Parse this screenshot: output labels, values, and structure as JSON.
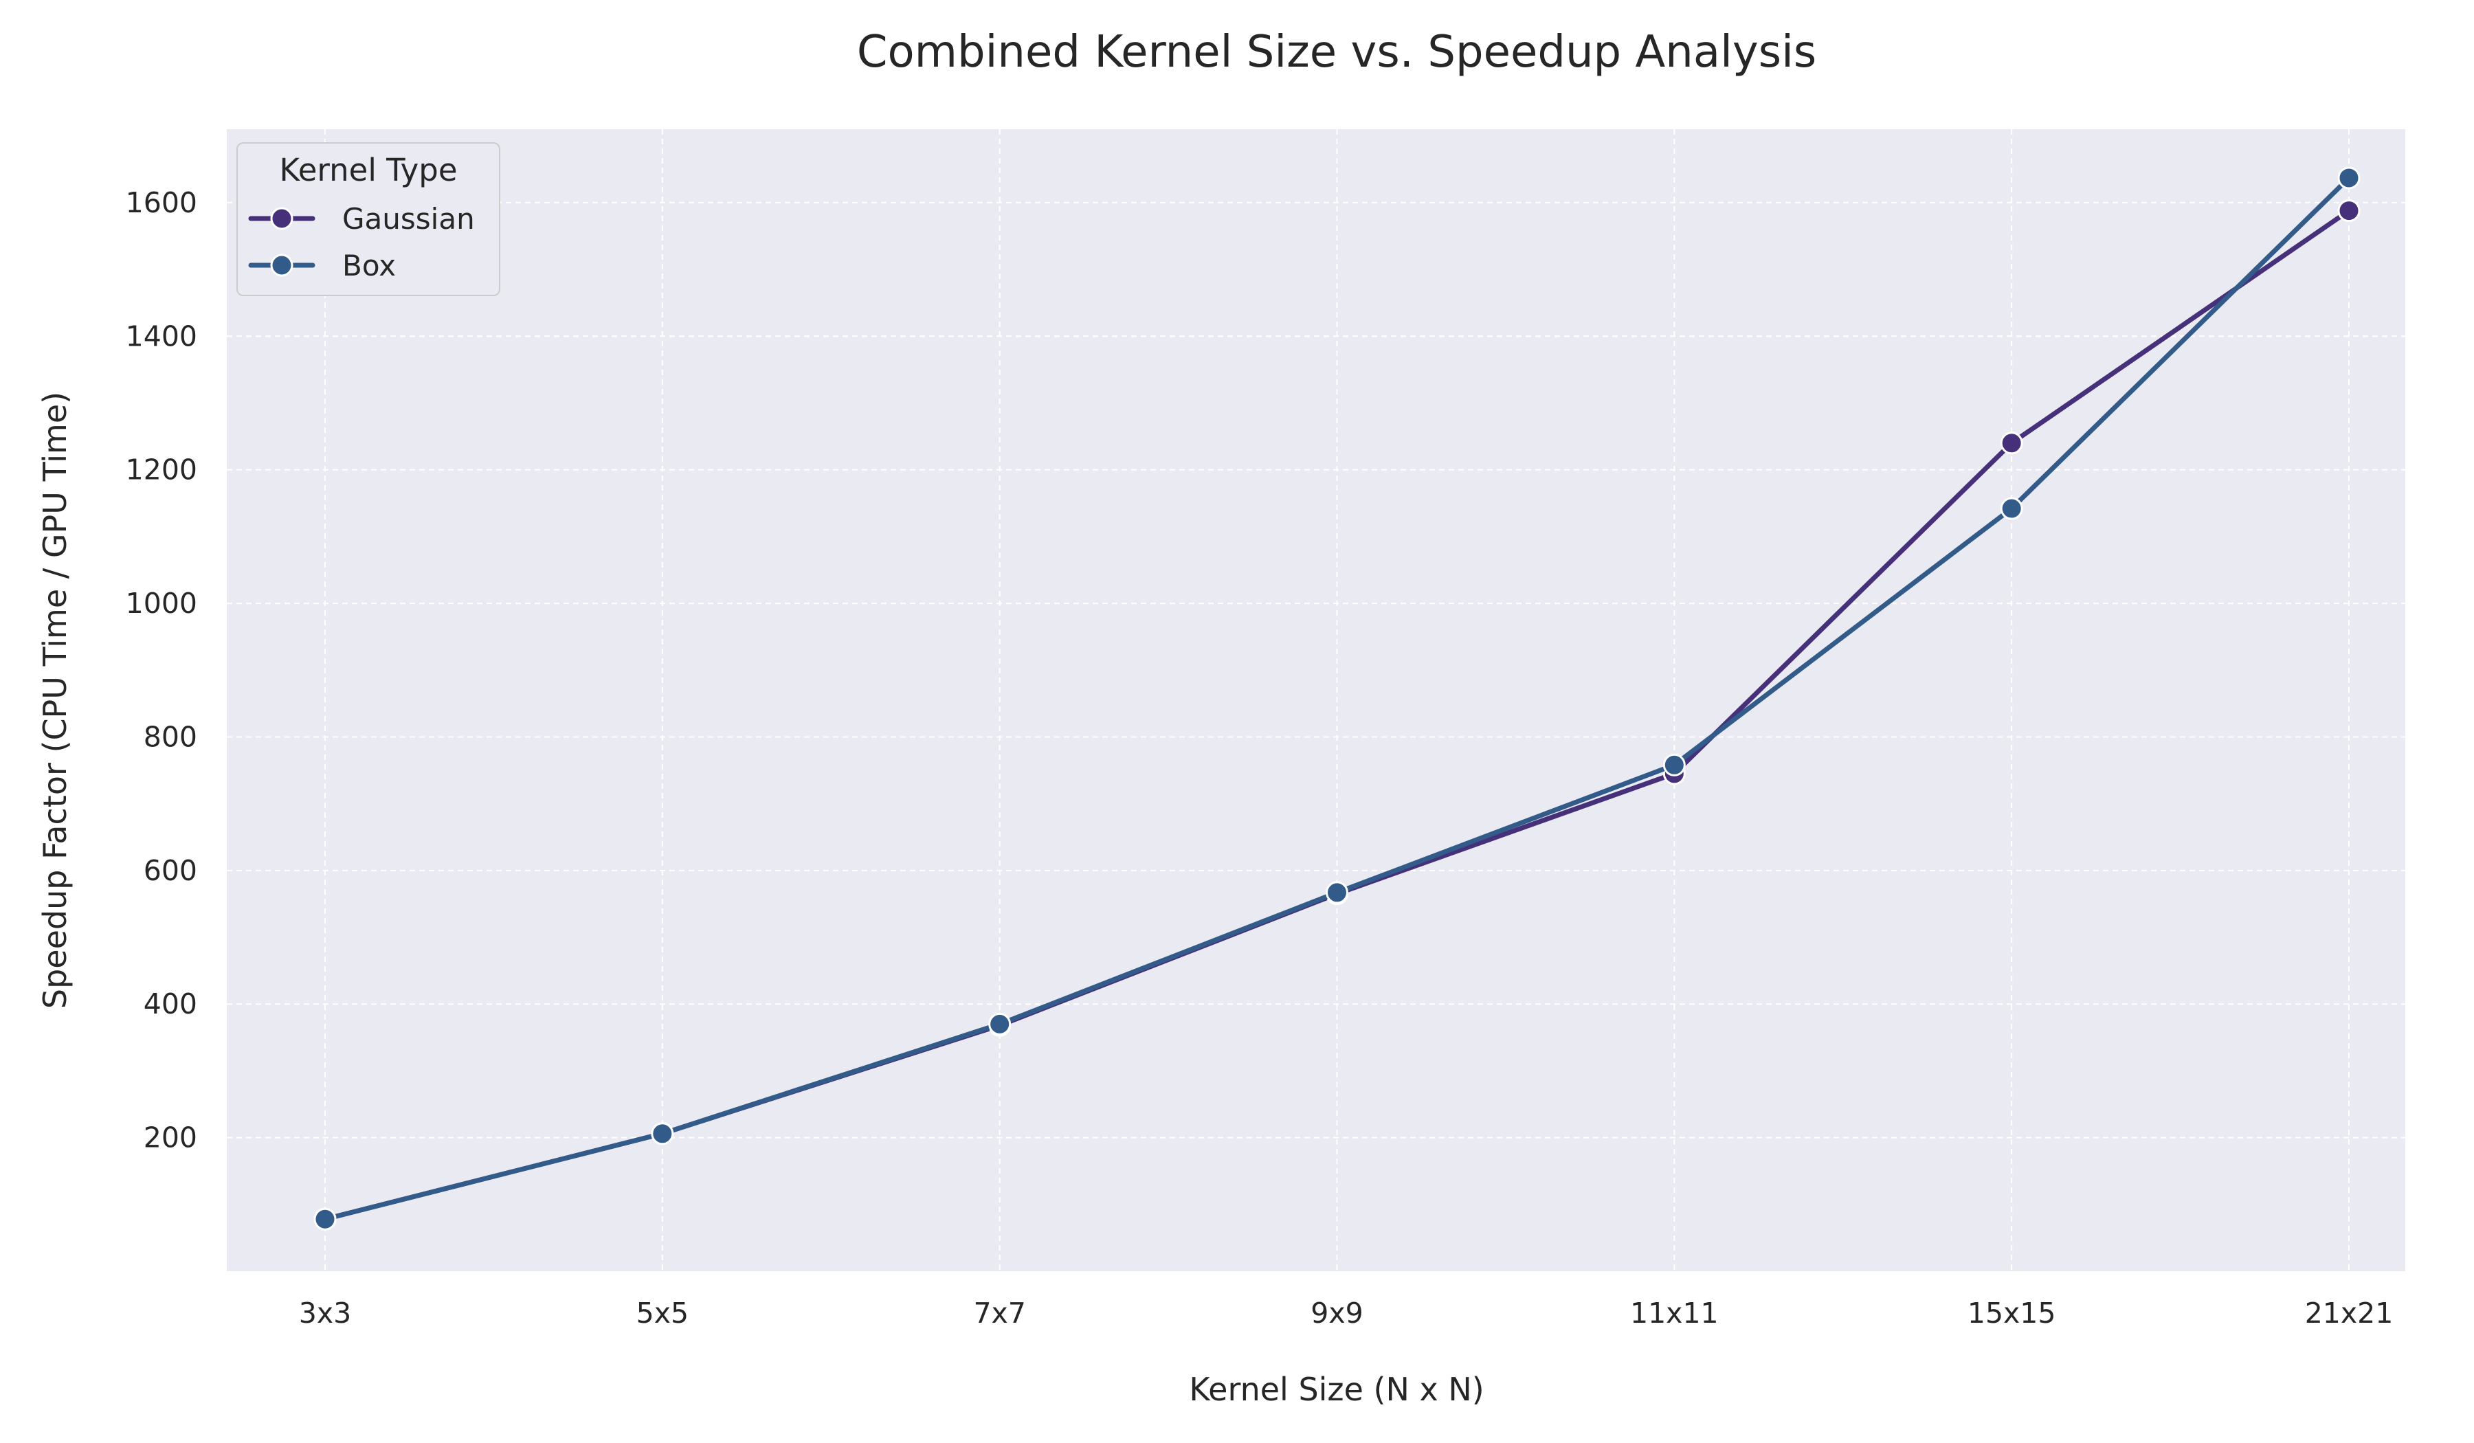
{
  "chart_data": {
    "type": "line",
    "title": "Combined Kernel Size vs. Speedup Analysis",
    "xlabel": "Kernel Size (N x N)",
    "ylabel": "Speedup Factor (CPU Time / GPU Time)",
    "categories": [
      "3x3",
      "5x5",
      "7x7",
      "9x9",
      "11x11",
      "15x15",
      "21x21"
    ],
    "yticks": [
      200,
      400,
      600,
      800,
      1000,
      1200,
      1400,
      1600
    ],
    "ylim": [
      0,
      1710
    ],
    "grid": true,
    "legend": {
      "title": "Kernel Type",
      "placement": "top-left"
    },
    "series": [
      {
        "name": "Gaussian",
        "color": "#46307a",
        "marker": "circle",
        "values": [
          78,
          206,
          368,
          565,
          745,
          1240,
          1588
        ]
      },
      {
        "name": "Box",
        "color": "#325b8a",
        "marker": "circle",
        "values": [
          78,
          206,
          370,
          567,
          758,
          1142,
          1637
        ]
      }
    ]
  }
}
